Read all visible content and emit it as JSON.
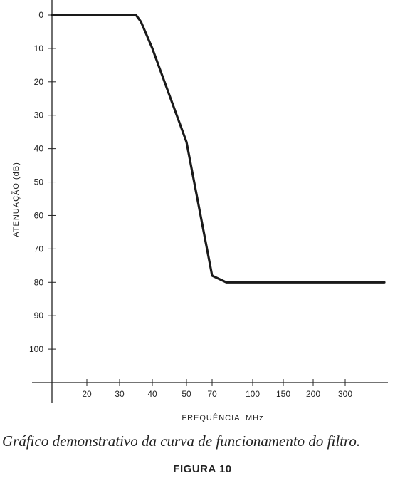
{
  "chart_data": {
    "type": "line",
    "title": "",
    "xlabel": "FREQUÊNCIA  MHz",
    "ylabel": "ATENUAÇÃO (dB)",
    "x_ticks": [
      "20",
      "30",
      "40",
      "50",
      "70",
      "100",
      "150",
      "200",
      "300"
    ],
    "y_ticks": [
      "0",
      "10",
      "20",
      "30",
      "40",
      "50",
      "60",
      "70",
      "80",
      "90",
      "100"
    ],
    "ylim": [
      0,
      110
    ],
    "y_inverted": true,
    "grid": false,
    "series": [
      {
        "x": [
          "10",
          "20",
          "30",
          "35",
          "37",
          "40",
          "50",
          "70",
          "80",
          "90",
          "100",
          "150",
          "200",
          "300",
          "450"
        ],
        "y": [
          0,
          0,
          0,
          0,
          2,
          10,
          38,
          78,
          80,
          80,
          80,
          80,
          80,
          80,
          80
        ]
      }
    ]
  },
  "caption": "Gráfico demonstrativo da curva de funcionamento do filtro.",
  "figure_label": "FIGURA 10"
}
